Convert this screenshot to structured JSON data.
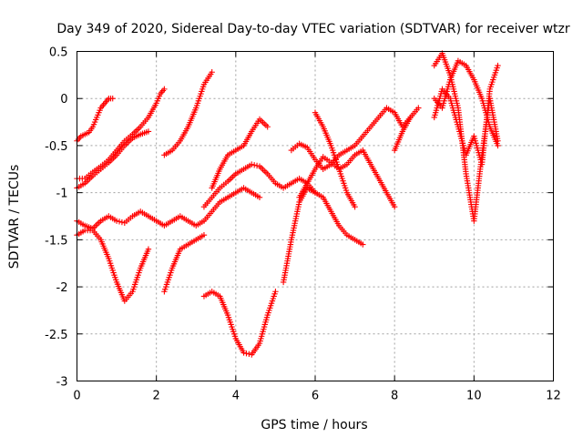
{
  "chart_data": {
    "type": "scatter",
    "title": "Day 349 of 2020, Sidereal Day-to-day VTEC variation (SDTVAR) for receiver wtzr",
    "xlabel": "GPS time / hours",
    "ylabel": "SDTVAR / TECUs",
    "xlim": [
      0,
      12
    ],
    "ylim": [
      -3,
      0.5
    ],
    "xticks": [
      "0",
      "2",
      "4",
      "6",
      "8",
      "10",
      "12"
    ],
    "yticks": [
      "0.5",
      "0",
      "-0.5",
      "-1",
      "-1.5",
      "-2",
      "-2.5",
      "-3"
    ],
    "grid": true,
    "marker": "plus",
    "color": "#ff0000",
    "series": [
      {
        "x": [
          0.0,
          0.1,
          0.2,
          0.3,
          0.4,
          0.5,
          0.6,
          0.7,
          0.8,
          0.9
        ],
        "y": [
          -0.45,
          -0.4,
          -0.38,
          -0.36,
          -0.3,
          -0.2,
          -0.1,
          -0.05,
          0.0,
          0.0
        ]
      },
      {
        "x": [
          0.0,
          0.2,
          0.4,
          0.6,
          0.8,
          1.0,
          1.2,
          1.4,
          1.6,
          1.8,
          2.0,
          2.1,
          2.2
        ],
        "y": [
          -0.85,
          -0.85,
          -0.78,
          -0.72,
          -0.65,
          -0.55,
          -0.45,
          -0.38,
          -0.3,
          -0.2,
          -0.05,
          0.05,
          0.1
        ]
      },
      {
        "x": [
          0.0,
          0.2,
          0.4,
          0.6,
          0.8,
          1.0,
          1.2,
          1.4,
          1.6,
          1.8
        ],
        "y": [
          -0.95,
          -0.9,
          -0.82,
          -0.75,
          -0.68,
          -0.6,
          -0.5,
          -0.42,
          -0.38,
          -0.35
        ]
      },
      {
        "x": [
          0.0,
          0.2,
          0.4,
          0.6,
          0.8,
          1.0,
          1.2,
          1.4,
          1.6,
          1.8
        ],
        "y": [
          -1.45,
          -1.4,
          -1.4,
          -1.5,
          -1.7,
          -1.95,
          -2.15,
          -2.05,
          -1.8,
          -1.6
        ]
      },
      {
        "x": [
          0.0,
          0.2,
          0.4,
          0.6,
          0.8,
          1.0,
          1.2,
          1.4,
          1.6,
          1.8,
          2.0,
          2.2,
          2.4,
          2.6,
          2.8,
          3.0,
          3.2,
          3.4,
          3.6,
          3.8,
          4.0,
          4.2,
          4.4,
          4.6
        ],
        "y": [
          -1.3,
          -1.35,
          -1.38,
          -1.3,
          -1.25,
          -1.3,
          -1.32,
          -1.25,
          -1.2,
          -1.25,
          -1.3,
          -1.35,
          -1.3,
          -1.25,
          -1.3,
          -1.35,
          -1.3,
          -1.2,
          -1.1,
          -1.05,
          -1.0,
          -0.95,
          -1.0,
          -1.05
        ]
      },
      {
        "x": [
          2.2,
          2.4,
          2.6,
          2.8,
          3.0,
          3.2,
          3.4
        ],
        "y": [
          -0.6,
          -0.55,
          -0.45,
          -0.3,
          -0.1,
          0.15,
          0.28
        ]
      },
      {
        "x": [
          2.2,
          2.4,
          2.6,
          2.8,
          3.0,
          3.2
        ],
        "y": [
          -2.05,
          -1.8,
          -1.6,
          -1.55,
          -1.5,
          -1.45
        ]
      },
      {
        "x": [
          3.2,
          3.4,
          3.6,
          3.8,
          4.0,
          4.2,
          4.4,
          4.6,
          4.8,
          5.0
        ],
        "y": [
          -2.1,
          -2.05,
          -2.1,
          -2.3,
          -2.55,
          -2.7,
          -2.72,
          -2.6,
          -2.3,
          -2.05
        ]
      },
      {
        "x": [
          3.2,
          3.4,
          3.6,
          3.8,
          4.0,
          4.2,
          4.4,
          4.6,
          4.8,
          5.0,
          5.2,
          5.4,
          5.6,
          5.8,
          6.0,
          6.2,
          6.4,
          6.6,
          6.8,
          7.0,
          7.2
        ],
        "y": [
          -1.15,
          -1.05,
          -0.95,
          -0.88,
          -0.8,
          -0.75,
          -0.7,
          -0.72,
          -0.8,
          -0.9,
          -0.95,
          -0.9,
          -0.85,
          -0.9,
          -1.0,
          -1.05,
          -1.2,
          -1.35,
          -1.45,
          -1.5,
          -1.55
        ]
      },
      {
        "x": [
          3.4,
          3.6,
          3.8,
          4.0,
          4.2,
          4.4,
          4.6,
          4.8
        ],
        "y": [
          -0.95,
          -0.75,
          -0.6,
          -0.55,
          -0.5,
          -0.35,
          -0.22,
          -0.3
        ]
      },
      {
        "x": [
          5.4,
          5.6,
          5.8,
          6.0,
          6.2,
          6.4,
          6.6,
          6.8,
          7.0,
          7.2,
          7.4,
          7.6,
          7.8,
          8.0,
          8.2,
          8.4,
          8.6
        ],
        "y": [
          -0.55,
          -0.48,
          -0.52,
          -0.65,
          -0.75,
          -0.7,
          -0.6,
          -0.55,
          -0.5,
          -0.4,
          -0.3,
          -0.2,
          -0.1,
          -0.15,
          -0.3,
          -0.2,
          -0.1
        ]
      },
      {
        "x": [
          5.6,
          5.8,
          6.0,
          6.2,
          6.4,
          6.6,
          6.8,
          7.0,
          7.2,
          7.4,
          7.6,
          7.8,
          8.0
        ],
        "y": [
          -1.05,
          -0.9,
          -0.75,
          -0.62,
          -0.68,
          -0.75,
          -0.7,
          -0.6,
          -0.55,
          -0.7,
          -0.85,
          -1.0,
          -1.15
        ]
      },
      {
        "x": [
          6.0,
          6.2,
          6.4,
          6.6,
          6.8,
          7.0
        ],
        "y": [
          -0.15,
          -0.3,
          -0.5,
          -0.75,
          -1.0,
          -1.15
        ]
      },
      {
        "x": [
          5.2,
          5.4,
          5.6,
          5.8,
          6.0
        ],
        "y": [
          -1.95,
          -1.5,
          -1.1,
          -0.95,
          -1.0
        ]
      },
      {
        "x": [
          8.0,
          8.2,
          8.4
        ],
        "y": [
          -0.55,
          -0.35,
          -0.2
        ]
      },
      {
        "x": [
          9.0,
          9.2,
          9.4,
          9.6,
          9.8,
          10.0,
          10.2,
          10.4,
          10.6
        ],
        "y": [
          0.35,
          0.48,
          0.25,
          -0.1,
          -0.8,
          -1.3,
          -0.6,
          0.0,
          -0.45
        ]
      },
      {
        "x": [
          9.0,
          9.2,
          9.4,
          9.6,
          9.8,
          10.0,
          10.2,
          10.4,
          10.6
        ],
        "y": [
          0.0,
          -0.1,
          0.2,
          0.4,
          0.35,
          0.2,
          0.0,
          -0.3,
          -0.5
        ]
      },
      {
        "x": [
          9.0,
          9.2,
          9.4,
          9.6,
          9.8,
          10.0,
          10.2,
          10.4,
          10.6
        ],
        "y": [
          -0.2,
          0.1,
          0.0,
          -0.3,
          -0.6,
          -0.4,
          -0.7,
          0.1,
          0.35
        ]
      }
    ]
  }
}
